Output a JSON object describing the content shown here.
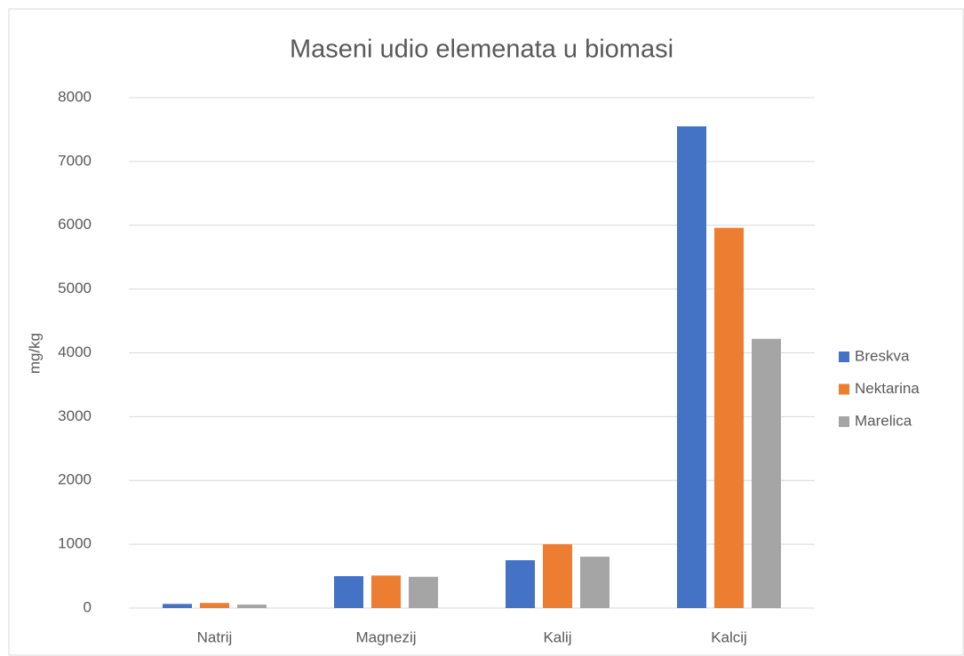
{
  "chart_data": {
    "type": "bar",
    "title": "Maseni udio elemenata u biomasi",
    "y_label": "mg/kg",
    "categories": [
      "Natrij",
      "Magnezij",
      "Kalij",
      "Kalcij"
    ],
    "series": [
      {
        "name": "Breskva",
        "color": "#4472c4",
        "values": [
          65,
          500,
          750,
          7550
        ]
      },
      {
        "name": "Nektarina",
        "color": "#ed7d31",
        "values": [
          80,
          510,
          1000,
          5960
        ]
      },
      {
        "name": "Marelica",
        "color": "#a5a5a5",
        "values": [
          55,
          490,
          805,
          4220
        ]
      }
    ],
    "ylim": [
      0,
      8000
    ],
    "yticks": [
      0,
      1000,
      2000,
      3000,
      4000,
      5000,
      6000,
      7000,
      8000
    ],
    "grid": true,
    "legend": "right"
  }
}
